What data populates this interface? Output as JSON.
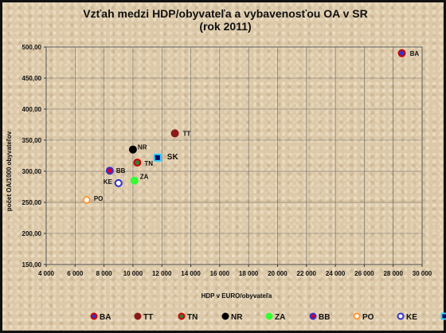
{
  "chart_data": {
    "type": "scatter",
    "title_line1": "Vzťah medzi HDP/obyvateľa a vybavenosťou OA v SR",
    "title_line2": "(rok 2011)",
    "xlabel": "HDP v EURO/obyvateľa",
    "ylabel": "počet OA/1000 obyvateľov",
    "xlim": [
      4000,
      30000
    ],
    "ylim": [
      150,
      500
    ],
    "x_ticks": [
      4000,
      6000,
      8000,
      10000,
      12000,
      14000,
      16000,
      18000,
      20000,
      22000,
      24000,
      26000,
      28000,
      30000
    ],
    "x_tick_labels": [
      "4 000",
      "6 000",
      "8 000",
      "10 000",
      "12 000",
      "14 000",
      "16 000",
      "18 000",
      "20 000",
      "22 000",
      "24 000",
      "26 000",
      "28 000",
      "30 000"
    ],
    "y_ticks": [
      150,
      200,
      250,
      300,
      350,
      400,
      450,
      500
    ],
    "y_tick_labels": [
      "150,00",
      "200,00",
      "250,00",
      "300,00",
      "350,00",
      "400,00",
      "450,00",
      "500,00"
    ],
    "grid": true,
    "legend_position": "bottom",
    "series": [
      {
        "name": "BA",
        "x": 28600,
        "y": 490,
        "fill": "#3333cc",
        "stroke": "#cc0000",
        "shape": "circle"
      },
      {
        "name": "TT",
        "x": 12900,
        "y": 361,
        "fill": "#8b1a1a",
        "stroke": "#8b1a1a",
        "shape": "circle"
      },
      {
        "name": "TN",
        "x": 10300,
        "y": 314,
        "fill": "#3a7a3a",
        "stroke": "#cc0000",
        "shape": "circle"
      },
      {
        "name": "NR",
        "x": 10000,
        "y": 335,
        "fill": "#000000",
        "stroke": "#000000",
        "shape": "circle"
      },
      {
        "name": "ZA",
        "x": 10100,
        "y": 285,
        "fill": "#33ff33",
        "stroke": "#33ff33",
        "shape": "circle"
      },
      {
        "name": "BB",
        "x": 8400,
        "y": 301,
        "fill": "#cc0033",
        "stroke": "#3333cc",
        "shape": "circle"
      },
      {
        "name": "PO",
        "x": 6800,
        "y": 254,
        "fill": "#ffffff",
        "stroke": "#ff9933",
        "shape": "circle"
      },
      {
        "name": "KE",
        "x": 9000,
        "y": 281,
        "fill": "#ffffff",
        "stroke": "#3333cc",
        "shape": "circle"
      },
      {
        "name": "SK",
        "x": 11700,
        "y": 322,
        "fill": "#000066",
        "stroke": "#33ccff",
        "shape": "square"
      }
    ],
    "point_labels": [
      {
        "text": "BA",
        "for": "BA"
      },
      {
        "text": "TT",
        "for": "TT"
      },
      {
        "text": "TN",
        "for": "TN"
      },
      {
        "text": "NR",
        "for": "NR"
      },
      {
        "text": "ZA",
        "for": "ZA"
      },
      {
        "text": "BB",
        "for": "BB"
      },
      {
        "text": "PO",
        "for": "PO"
      },
      {
        "text": "KE",
        "for": "KE"
      },
      {
        "text": "SK",
        "for": "SK"
      }
    ]
  }
}
